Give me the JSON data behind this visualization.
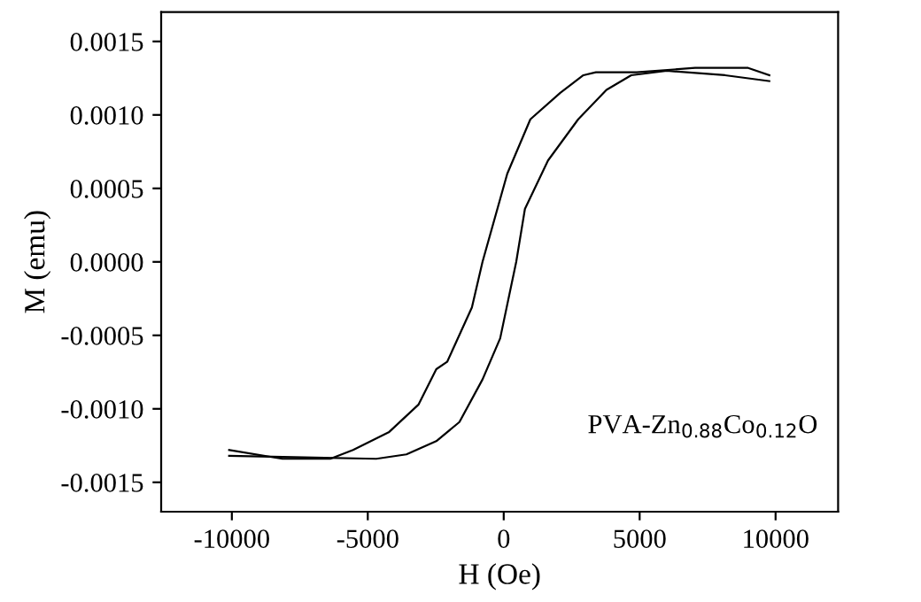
{
  "chart_data": {
    "type": "line",
    "xlabel": "H (Oe)",
    "ylabel": "M (emu)",
    "annotations": [
      "PVA-Zn$_{0.88}$Co$_{0.12}$O"
    ],
    "xlim": [
      -12600,
      12300
    ],
    "ylim": [
      -0.0017,
      0.0017
    ],
    "xticks": [
      -10000,
      -5000,
      0,
      5000,
      10000
    ],
    "yticks": [
      {
        "value": -0.0015,
        "label": "-0.0015"
      },
      {
        "value": -0.001,
        "label": "-0.0010"
      },
      {
        "value": -0.0005,
        "label": "-0.0005"
      },
      {
        "value": 0,
        "label": "0.0000"
      },
      {
        "value": 0.0005,
        "label": "0.0005"
      },
      {
        "value": 0.001,
        "label": "0.0010"
      },
      {
        "value": 0.0015,
        "label": "0.0015"
      }
    ],
    "grid": false,
    "legend": false,
    "marker": "none",
    "line_style": "solid",
    "series": [
      {
        "color": "#000000",
        "x": [
          9770,
          8990,
          7040,
          4890,
          3390,
          2930,
          2080,
          980,
          130,
          -780,
          -1170,
          -2080,
          -2480,
          -3130,
          -4230,
          -5540,
          -6380,
          -8140,
          -10100
        ],
        "values": [
          0.00127,
          0.00132,
          0.00132,
          0.00129,
          0.00129,
          0.00127,
          0.00115,
          0.00097,
          0.0006,
          0.0,
          -0.00031,
          -0.00068,
          -0.00073,
          -0.00097,
          -0.00116,
          -0.00128,
          -0.00134,
          -0.00134,
          -0.00128
        ]
      },
      {
        "color": "#000000",
        "x": [
          -10100,
          -7340,
          -4690,
          -3580,
          -2480,
          -1630,
          -780,
          -130,
          460,
          780,
          1630,
          2740,
          3780,
          4690,
          6000,
          8140,
          9770
        ],
        "values": [
          -0.00132,
          -0.00133,
          -0.00134,
          -0.00131,
          -0.00122,
          -0.00109,
          -0.0008,
          -0.00052,
          0.0,
          0.00036,
          0.00069,
          0.00097,
          0.00117,
          0.00127,
          0.0013,
          0.00127,
          0.00123
        ]
      }
    ]
  }
}
